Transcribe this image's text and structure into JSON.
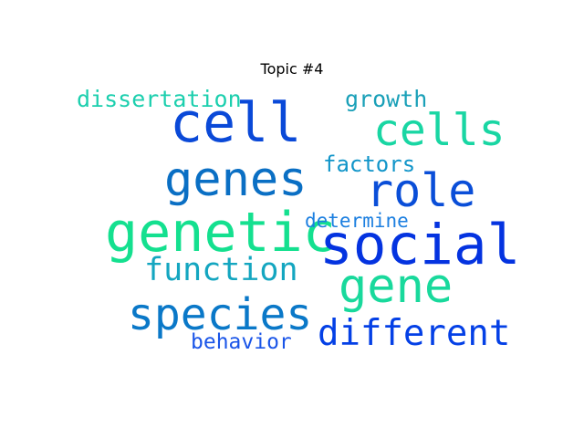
{
  "title": "Topic #4",
  "words": [
    {
      "text": "dissertation",
      "color": "#1ccfae"
    },
    {
      "text": "growth",
      "color": "#1aa0b8"
    },
    {
      "text": "cell",
      "color": "#0a49d8"
    },
    {
      "text": "cells",
      "color": "#19d6a3"
    },
    {
      "text": "genes",
      "color": "#0a6fc4"
    },
    {
      "text": "factors",
      "color": "#1195c9"
    },
    {
      "text": "role",
      "color": "#0a4ed8"
    },
    {
      "text": "genetic",
      "color": "#14e08f"
    },
    {
      "text": "determine",
      "color": "#1c7fe0"
    },
    {
      "text": "social",
      "color": "#0433e0"
    },
    {
      "text": "function",
      "color": "#14a6c0"
    },
    {
      "text": "gene",
      "color": "#19d99c"
    },
    {
      "text": "species",
      "color": "#0a78c8"
    },
    {
      "text": "different",
      "color": "#0440e6"
    },
    {
      "text": "behavior",
      "color": "#1a55e8"
    }
  ]
}
